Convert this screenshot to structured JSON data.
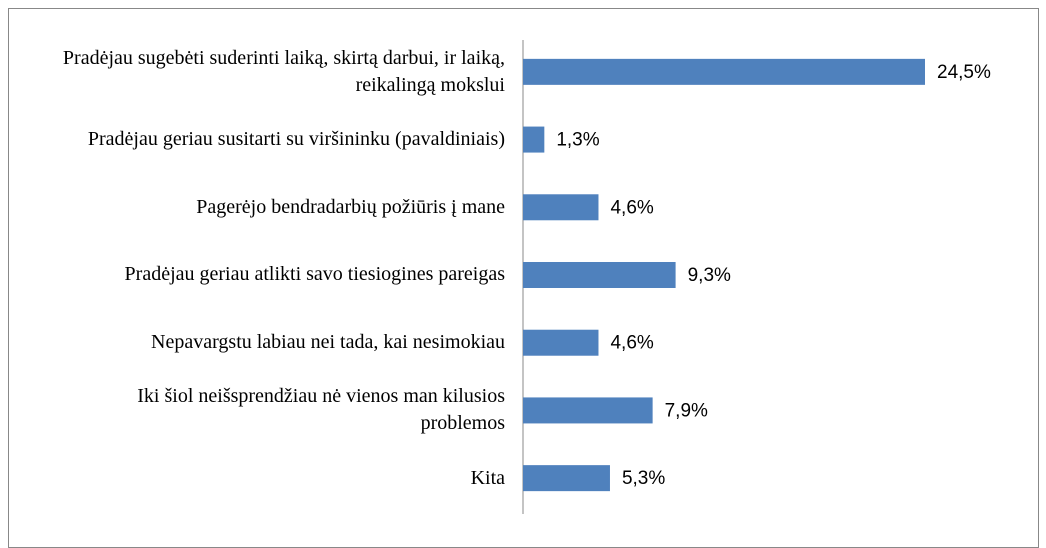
{
  "chart_data": {
    "type": "bar",
    "orientation": "horizontal",
    "categories": [
      "Pradėjau sugebėti suderinti laiką, skirtą darbui, ir laiką, reikalingą mokslui",
      "Pradėjau geriau susitarti su viršininku (pavaldiniais)",
      "Pagerėjo bendradarbių požiūris į mane",
      "Pradėjau geriau atlikti savo tiesiogines pareigas",
      "Nepavargstu labiau nei tada, kai nesimokiau",
      "Iki šiol neišsprendžiau nė vienos man kilusios problemos",
      "Kita"
    ],
    "values": [
      24.5,
      1.3,
      4.6,
      9.3,
      4.6,
      7.9,
      5.3
    ],
    "value_labels": [
      "24,5%",
      "1,3%",
      "4,6%",
      "9,3%",
      "4,6%",
      "7,9%",
      "5,3%"
    ],
    "color": "#4f81bd"
  }
}
